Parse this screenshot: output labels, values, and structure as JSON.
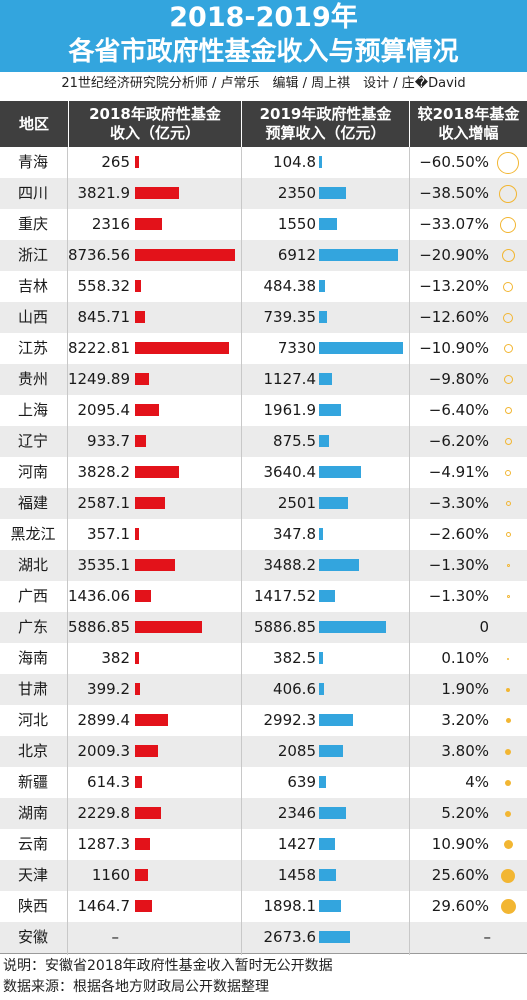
{
  "header": {
    "title_line1": "2018-2019年",
    "title_line2": "各省市政府性基金收入与预算情况",
    "credits": "21世纪经济研究院分析师 / 卢常乐　编辑 / 周上祺　设计 / 庄�David"
  },
  "columns": {
    "region": "地区",
    "income_2018": "2018年政府性基金\n收入（亿元）",
    "budget_2019": "2019年政府性基金\n预算收入（亿元）",
    "change": "较2018年基金\n收入增幅"
  },
  "colors": {
    "header_bg": "#33a5de",
    "bar_2018": "#e3121a",
    "bar_2019": "#33a5de",
    "decrease_circle": "#f2b632",
    "increase_circle": "#f2b632"
  },
  "chart_data": {
    "type": "table",
    "rows": [
      {
        "region": "青海",
        "income_2018": 265,
        "income_2018_label": "265",
        "budget_2019": 104.8,
        "budget_2019_label": "104.8",
        "change_pct": -60.5,
        "change_label": "−60.50%"
      },
      {
        "region": "四川",
        "income_2018": 3821.9,
        "income_2018_label": "3821.9",
        "budget_2019": 2350,
        "budget_2019_label": "2350",
        "change_pct": -38.5,
        "change_label": "−38.50%"
      },
      {
        "region": "重庆",
        "income_2018": 2316,
        "income_2018_label": "2316",
        "budget_2019": 1550,
        "budget_2019_label": "1550",
        "change_pct": -33.07,
        "change_label": "−33.07%"
      },
      {
        "region": "浙江",
        "income_2018": 8736.56,
        "income_2018_label": "8736.56",
        "budget_2019": 6912,
        "budget_2019_label": "6912",
        "change_pct": -20.9,
        "change_label": "−20.90%"
      },
      {
        "region": "吉林",
        "income_2018": 558.32,
        "income_2018_label": "558.32",
        "budget_2019": 484.38,
        "budget_2019_label": "484.38",
        "change_pct": -13.2,
        "change_label": "−13.20%"
      },
      {
        "region": "山西",
        "income_2018": 845.71,
        "income_2018_label": "845.71",
        "budget_2019": 739.35,
        "budget_2019_label": "739.35",
        "change_pct": -12.6,
        "change_label": "−12.60%"
      },
      {
        "region": "江苏",
        "income_2018": 8222.81,
        "income_2018_label": "8222.81",
        "budget_2019": 7330,
        "budget_2019_label": "7330",
        "change_pct": -10.9,
        "change_label": "−10.90%"
      },
      {
        "region": "贵州",
        "income_2018": 1249.89,
        "income_2018_label": "1249.89",
        "budget_2019": 1127.4,
        "budget_2019_label": "1127.4",
        "change_pct": -9.8,
        "change_label": "−9.80%"
      },
      {
        "region": "上海",
        "income_2018": 2095.4,
        "income_2018_label": "2095.4",
        "budget_2019": 1961.9,
        "budget_2019_label": "1961.9",
        "change_pct": -6.4,
        "change_label": "−6.40%"
      },
      {
        "region": "辽宁",
        "income_2018": 933.7,
        "income_2018_label": "933.7",
        "budget_2019": 875.5,
        "budget_2019_label": "875.5",
        "change_pct": -6.2,
        "change_label": "−6.20%"
      },
      {
        "region": "河南",
        "income_2018": 3828.2,
        "income_2018_label": "3828.2",
        "budget_2019": 3640.4,
        "budget_2019_label": "3640.4",
        "change_pct": -4.91,
        "change_label": "−4.91%"
      },
      {
        "region": "福建",
        "income_2018": 2587.1,
        "income_2018_label": "2587.1",
        "budget_2019": 2501,
        "budget_2019_label": "2501",
        "change_pct": -3.3,
        "change_label": "−3.30%"
      },
      {
        "region": "黑龙江",
        "income_2018": 357.1,
        "income_2018_label": "357.1",
        "budget_2019": 347.8,
        "budget_2019_label": "347.8",
        "change_pct": -2.6,
        "change_label": "−2.60%"
      },
      {
        "region": "湖北",
        "income_2018": 3535.1,
        "income_2018_label": "3535.1",
        "budget_2019": 3488.2,
        "budget_2019_label": "3488.2",
        "change_pct": -1.3,
        "change_label": "−1.30%"
      },
      {
        "region": "广西",
        "income_2018": 1436.06,
        "income_2018_label": "1436.06",
        "budget_2019": 1417.52,
        "budget_2019_label": "1417.52",
        "change_pct": -1.3,
        "change_label": "−1.30%"
      },
      {
        "region": "广东",
        "income_2018": 5886.85,
        "income_2018_label": "5886.85",
        "budget_2019": 5886.85,
        "budget_2019_label": "5886.85",
        "change_pct": 0,
        "change_label": "0"
      },
      {
        "region": "海南",
        "income_2018": 382,
        "income_2018_label": "382",
        "budget_2019": 382.5,
        "budget_2019_label": "382.5",
        "change_pct": 0.1,
        "change_label": "0.10%"
      },
      {
        "region": "甘肃",
        "income_2018": 399.2,
        "income_2018_label": "399.2",
        "budget_2019": 406.6,
        "budget_2019_label": "406.6",
        "change_pct": 1.9,
        "change_label": "1.90%"
      },
      {
        "region": "河北",
        "income_2018": 2899.4,
        "income_2018_label": "2899.4",
        "budget_2019": 2992.3,
        "budget_2019_label": "2992.3",
        "change_pct": 3.2,
        "change_label": "3.20%"
      },
      {
        "region": "北京",
        "income_2018": 2009.3,
        "income_2018_label": "2009.3",
        "budget_2019": 2085,
        "budget_2019_label": "2085",
        "change_pct": 3.8,
        "change_label": "3.80%"
      },
      {
        "region": "新疆",
        "income_2018": 614.3,
        "income_2018_label": "614.3",
        "budget_2019": 639,
        "budget_2019_label": "639",
        "change_pct": 4,
        "change_label": "4%"
      },
      {
        "region": "湖南",
        "income_2018": 2229.8,
        "income_2018_label": "2229.8",
        "budget_2019": 2346,
        "budget_2019_label": "2346",
        "change_pct": 5.2,
        "change_label": "5.20%"
      },
      {
        "region": "云南",
        "income_2018": 1287.3,
        "income_2018_label": "1287.3",
        "budget_2019": 1427,
        "budget_2019_label": "1427",
        "change_pct": 10.9,
        "change_label": "10.90%"
      },
      {
        "region": "天津",
        "income_2018": 1160,
        "income_2018_label": "1160",
        "budget_2019": 1458,
        "budget_2019_label": "1458",
        "change_pct": 25.6,
        "change_label": "25.60%"
      },
      {
        "region": "陕西",
        "income_2018": 1464.7,
        "income_2018_label": "1464.7",
        "budget_2019": 1898.1,
        "budget_2019_label": "1898.1",
        "change_pct": 29.6,
        "change_label": "29.60%"
      },
      {
        "region": "安徽",
        "income_2018": null,
        "income_2018_label": "–",
        "budget_2019": 2673.6,
        "budget_2019_label": "2673.6",
        "change_pct": null,
        "change_label": "–"
      }
    ]
  },
  "notes": {
    "note": "说明：安徽省2018年政府性基金收入暂时无公开数据",
    "source": "数据来源：根据各地方财政局公开数据整理"
  }
}
